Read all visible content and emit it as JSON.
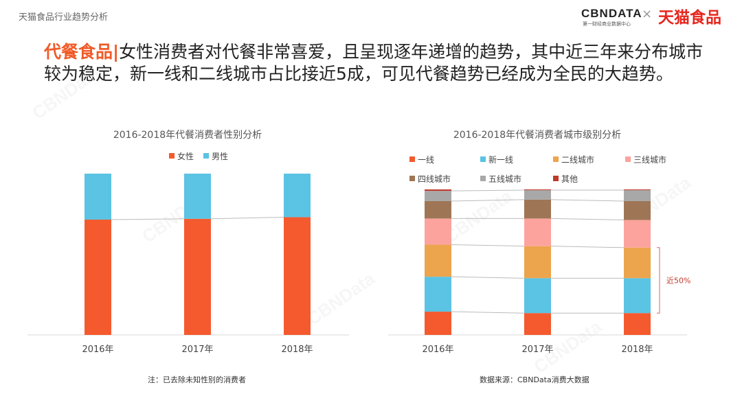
{
  "header": {
    "section_title": "天猫食品行业趋势分析",
    "brand_cbn": "CBNDATA",
    "brand_cbn_sub": "第一财经商业数据中心",
    "brand_x": "×",
    "brand_tmall": "天猫食品"
  },
  "headline": {
    "tag": "代餐食品|",
    "text": "女性消费者对代餐非常喜爱，且呈现逐年递增的趋势，其中近三年来分布城市较为稳定，新一线和二线城市占比接近5成，可见代餐趋势已经成为全民的大趋势。"
  },
  "colors": {
    "female": "#f45a2e",
    "male": "#5bc3e3",
    "tier1": "#f45a2e",
    "new_tier1": "#5bc3e3",
    "tier2": "#eca44d",
    "tier3": "#fca39d",
    "tier4": "#9e7656",
    "tier5": "#a8a8a8",
    "other": "#c0392b",
    "bracket": "#e0606a"
  },
  "chart_data": [
    {
      "type": "bar",
      "stacked": true,
      "title": "2016-2018年代餐消费者性别分析",
      "categories": [
        "2016年",
        "2017年",
        "2018年"
      ],
      "series": [
        {
          "name": "女性",
          "values": [
            71.5,
            72,
            73
          ]
        },
        {
          "name": "男性",
          "values": [
            28.5,
            28,
            27
          ]
        }
      ],
      "ylim": [
        0,
        100
      ],
      "legend": "top-center"
    },
    {
      "type": "bar",
      "stacked": true,
      "title": "2016-2018年代餐消费者城市级别分析",
      "categories": [
        "2016年",
        "2017年",
        "2018年"
      ],
      "series": [
        {
          "name": "一线",
          "values": [
            16,
            15,
            15
          ]
        },
        {
          "name": "新一线",
          "values": [
            24,
            24,
            24
          ]
        },
        {
          "name": "二线城市",
          "values": [
            22,
            22,
            21
          ]
        },
        {
          "name": "三线城市",
          "values": [
            18,
            19,
            19
          ]
        },
        {
          "name": "四线城市",
          "values": [
            12,
            13,
            13
          ]
        },
        {
          "name": "五线城市",
          "values": [
            7,
            6.5,
            7.5
          ]
        },
        {
          "name": "其他",
          "values": [
            1,
            0.5,
            0.5
          ]
        }
      ],
      "ylim": [
        0,
        100
      ],
      "legend": "top",
      "annotation": "近50%"
    }
  ],
  "footnotes": {
    "left": "注：已去除未知性别的消费者",
    "right": "数据来源：CBNData消费大数据"
  }
}
